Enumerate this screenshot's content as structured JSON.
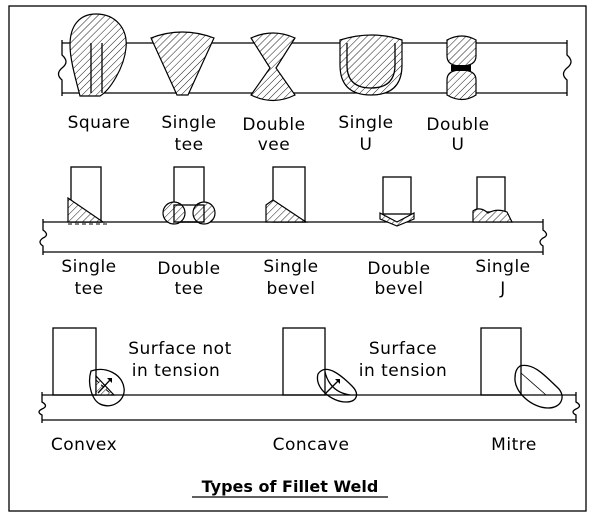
{
  "butt_welds": {
    "labels": [
      {
        "l1": "Square",
        "l2": ""
      },
      {
        "l1": "Single",
        "l2": "tee"
      },
      {
        "l1": "Double",
        "l2": "vee"
      },
      {
        "l1": "Single",
        "l2": "U"
      },
      {
        "l1": "Double",
        "l2": "U"
      }
    ]
  },
  "tee_welds": {
    "labels": [
      {
        "l1": "Single",
        "l2": "tee"
      },
      {
        "l1": "Double",
        "l2": "tee"
      },
      {
        "l1": "Single",
        "l2": "bevel"
      },
      {
        "l1": "Double",
        "l2": "bevel"
      },
      {
        "l1": "Single",
        "l2": "J"
      }
    ]
  },
  "fillet_profiles": {
    "labels": [
      "Convex",
      "Concave",
      "Mitre"
    ],
    "notes": [
      {
        "l1": "Surface not",
        "l2": "in tension"
      },
      {
        "l1": "Surface",
        "l2": "in tension"
      }
    ]
  },
  "title": "Types of Fillet Weld"
}
